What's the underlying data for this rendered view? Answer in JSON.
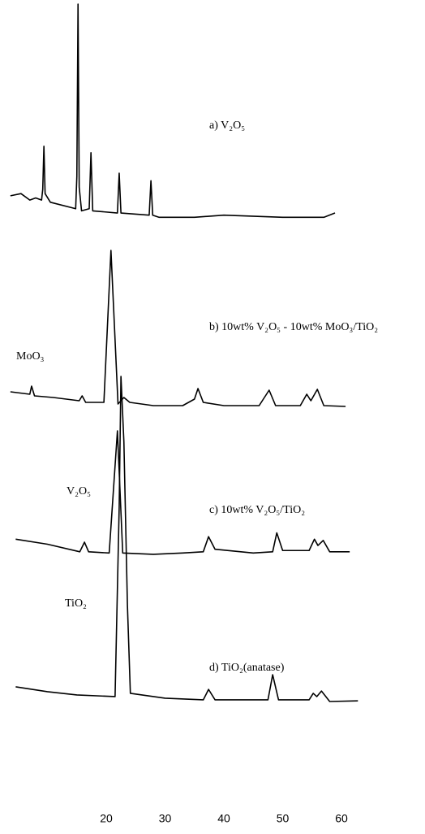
{
  "chart_data": {
    "type": "line",
    "xlim": [
      2,
      63
    ],
    "xticks": [
      20,
      30,
      40,
      50,
      60
    ],
    "series": [
      {
        "name": "a) V₂O₅",
        "color": "#000000",
        "ylim": [
          0,
          100
        ],
        "x": [
          3.7,
          5.5,
          7.0,
          8.0,
          9.0,
          9.2,
          9.4,
          9.6,
          10.5,
          14.8,
          15.0,
          15.2,
          15.4,
          15.8,
          17.1,
          17.4,
          17.7,
          21.9,
          22.2,
          22.5,
          27.3,
          27.6,
          27.9,
          29,
          35,
          40,
          50,
          57,
          58.9
        ],
        "values": [
          11,
          12,
          9,
          10,
          9,
          14,
          34,
          12,
          8,
          5,
          20,
          100,
          15,
          4,
          5,
          31,
          4,
          3,
          21.5,
          3,
          2,
          18,
          2,
          1,
          1,
          2,
          1,
          1,
          3
        ]
      },
      {
        "name": "b) 10wt% V₂O₅ - 10wt% MoO₃/TiO₂",
        "color": "#000000",
        "ylim": [
          0,
          100
        ],
        "annotation": "MoO₃",
        "x": [
          3.7,
          7.0,
          7.3,
          7.8,
          11,
          15.4,
          15.9,
          16.5,
          19.6,
          20.8,
          22.0,
          23.0,
          24.0,
          28,
          33,
          35.0,
          35.6,
          36.5,
          40,
          46,
          47.7,
          48.8,
          53,
          54.1,
          54.8,
          55.9,
          57,
          60.7
        ],
        "values": [
          11.5,
          10,
          15,
          9,
          8,
          6,
          9,
          5,
          5,
          98.5,
          4,
          8,
          5,
          3,
          3,
          7,
          13.5,
          5,
          3,
          3,
          12.5,
          3,
          3,
          10,
          6,
          13,
          3,
          2.5
        ]
      },
      {
        "name": "c) 10wt% V₂O₅/TiO₂",
        "color": "#000000",
        "ylim": [
          0,
          100
        ],
        "annotation": "V₂O₅",
        "x": [
          4.6,
          10,
          15.5,
          16.3,
          17,
          20.5,
          21.9,
          22.8,
          28,
          33,
          36.5,
          37.4,
          38.5,
          45,
          48.3,
          49,
          50,
          54.5,
          55.4,
          56,
          56.9,
          58,
          61.4
        ],
        "values": [
          14,
          10,
          4,
          11.6,
          4,
          3,
          100,
          3,
          2,
          3,
          4,
          16,
          6,
          3,
          4,
          19,
          5,
          5,
          14,
          9,
          13,
          4,
          4
        ]
      },
      {
        "name": "d) TiO₂(anatase)",
        "color": "#000000",
        "ylim": [
          0,
          100
        ],
        "annotation": "TiO₂",
        "x": [
          4.6,
          10,
          15,
          21.5,
          22.2,
          22.5,
          23.0,
          23.6,
          24.1,
          30,
          36.5,
          37.4,
          38.5,
          47.5,
          48.3,
          49.3,
          54.5,
          55.2,
          55.8,
          56.6,
          58,
          62.8
        ],
        "values": [
          5,
          3.5,
          2.5,
          2,
          60,
          100,
          80,
          30,
          3,
          1.5,
          1,
          4.2,
          1,
          1,
          8.7,
          1,
          1,
          3,
          2,
          3.7,
          0.5,
          0.7
        ]
      }
    ]
  }
}
